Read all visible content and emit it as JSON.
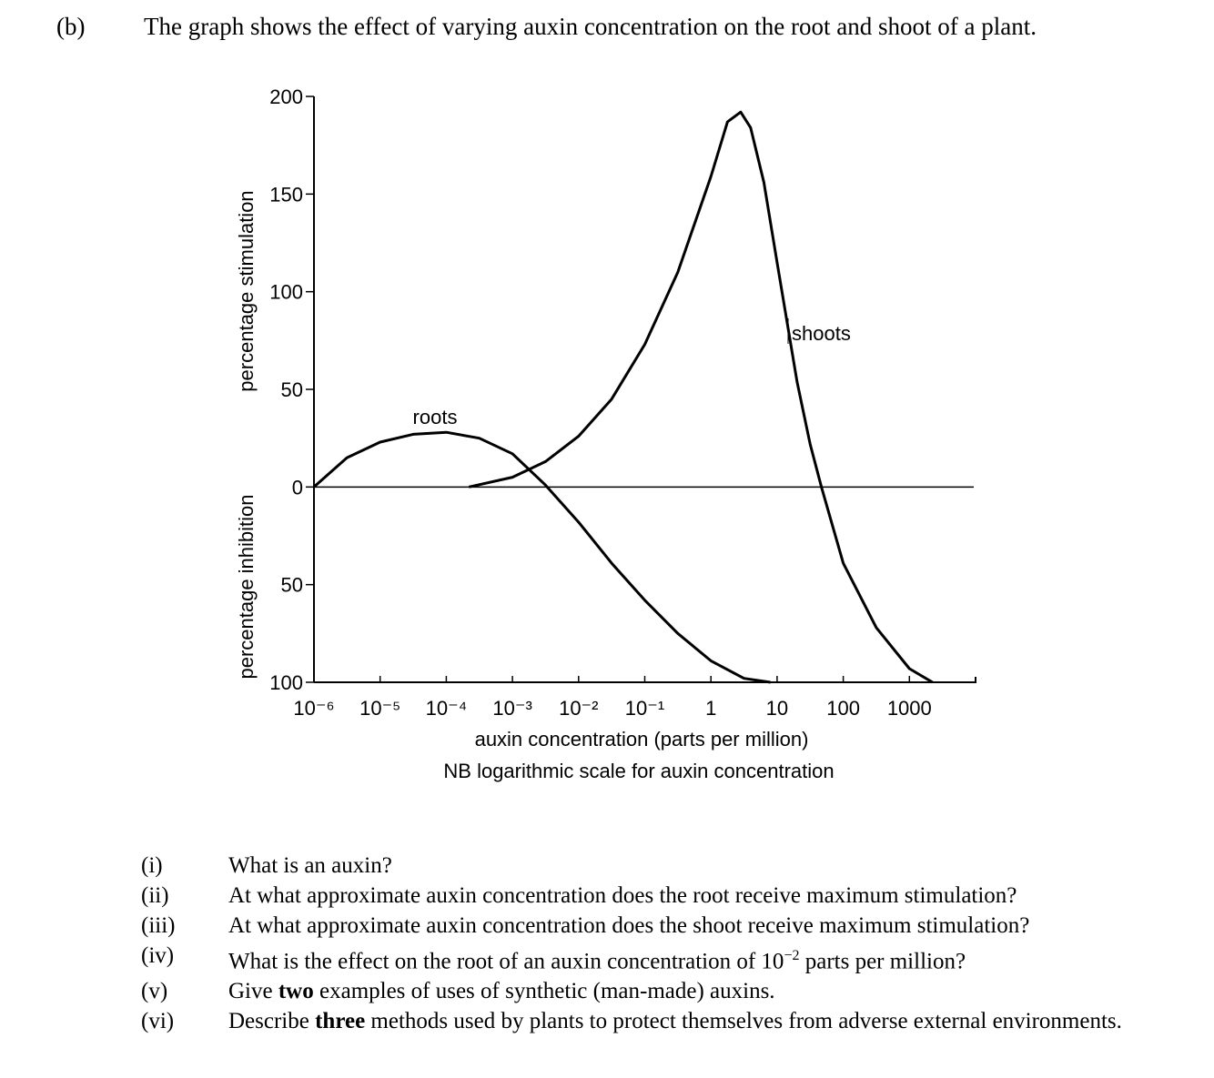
{
  "header": {
    "label": "(b)",
    "text": "The graph shows the effect of varying auxin concentration on the root and shoot of a plant."
  },
  "chart_data": {
    "type": "line",
    "xscale": "log",
    "ylabels": [
      "percentage stimulation",
      "percentage inhibition"
    ],
    "xlabel": "auxin concentration (parts per million)",
    "xnote": "NB logarithmic scale for auxin concentration",
    "xlim": [
      1e-06,
      10000
    ],
    "xticks": [
      {
        "value": 1e-06,
        "label": "10⁻⁶"
      },
      {
        "value": 1e-05,
        "label": "10⁻⁵"
      },
      {
        "value": 0.0001,
        "label": "10⁻⁴"
      },
      {
        "value": 0.001,
        "label": "10⁻³"
      },
      {
        "value": 0.01,
        "label": "10⁻²"
      },
      {
        "value": 0.1,
        "label": "10⁻¹"
      },
      1,
      10,
      100,
      1000
    ],
    "ylim": [
      -100,
      200
    ],
    "yticks": [
      200,
      150,
      100,
      50,
      0,
      {
        "value": -50,
        "label": "50"
      },
      {
        "value": -100,
        "label": "100"
      }
    ],
    "series": [
      {
        "name": "roots",
        "color": "#000000",
        "x": [
          1e-06,
          3.16e-06,
          1e-05,
          3.16e-05,
          0.0001,
          0.000316,
          0.001,
          0.00316,
          0.01,
          0.0316,
          0.1,
          0.316,
          1,
          3.16,
          7.94
        ],
        "values": [
          0,
          15,
          23,
          27,
          28,
          25,
          17,
          1,
          -18,
          -39,
          -58,
          -75,
          -89,
          -98,
          -100
        ]
      },
      {
        "name": "shoots",
        "color": "#000000",
        "x": [
          0.00022,
          0.001,
          0.00316,
          0.01,
          0.0316,
          0.1,
          0.316,
          1,
          1.78,
          2.82,
          3.98,
          6.31,
          10,
          20,
          31.6,
          46.8,
          100,
          316,
          1000,
          2239
        ],
        "values": [
          0,
          5,
          13,
          26,
          45,
          73,
          110,
          159,
          187,
          192,
          184,
          156,
          115,
          54,
          22,
          0,
          -39,
          -72,
          -93,
          -100
        ]
      }
    ]
  },
  "questions": [
    {
      "number": "(i)",
      "text": [
        "What is an auxin?"
      ]
    },
    {
      "number": "(ii)",
      "text": [
        "At what approximate auxin concentration does the root receive maximum stimulation?"
      ]
    },
    {
      "number": "(iii)",
      "text": [
        "At what approximate auxin concentration does the shoot receive maximum stimulation?"
      ]
    },
    {
      "number": "(iv)",
      "text": [
        "What is the effect on the root of an auxin concentration of 10",
        "−2",
        " parts per million?"
      ]
    },
    {
      "number": "(v)",
      "text": [
        "Give ",
        "two",
        " examples of uses of synthetic (man-made) auxins."
      ]
    },
    {
      "number": "(vi)",
      "text": [
        "Describe ",
        "three",
        " methods used by plants to protect themselves from adverse external environments."
      ]
    }
  ]
}
